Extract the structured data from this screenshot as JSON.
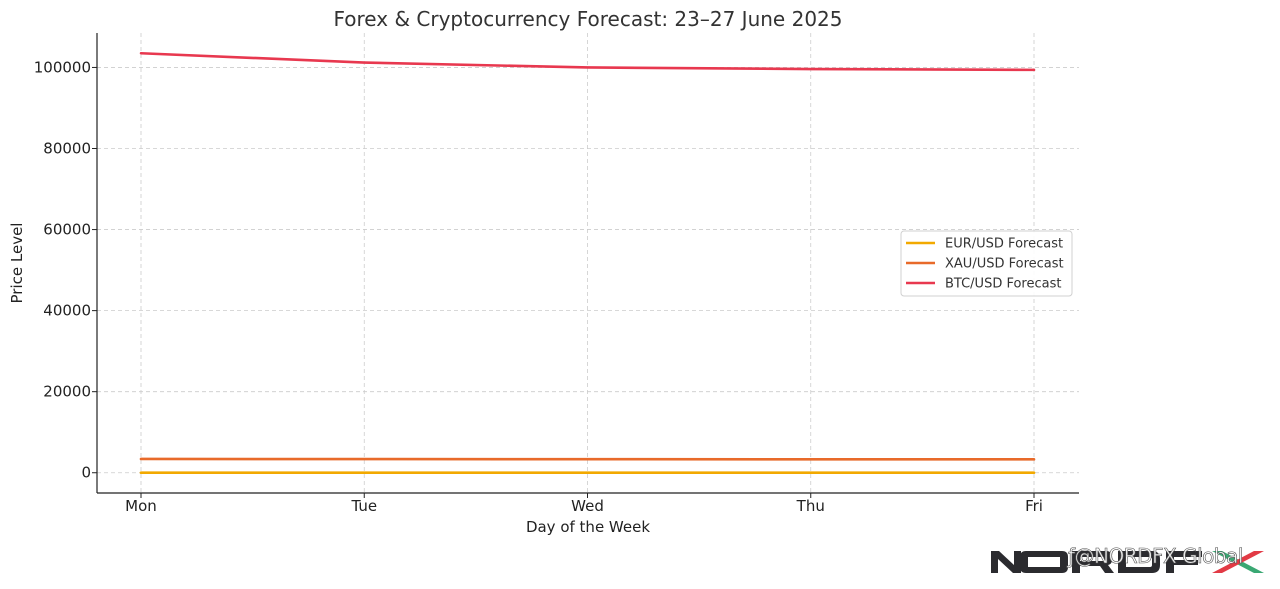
{
  "chart_data": {
    "type": "line",
    "title": "Forex & Cryptocurrency Forecast: 23–27 June 2025",
    "xlabel": "Day of the Week",
    "ylabel": "Price Level",
    "categories": [
      "Mon",
      "Tue",
      "Wed",
      "Thu",
      "Fri"
    ],
    "ylim": [
      -5000,
      108500
    ],
    "yticks": [
      0,
      20000,
      40000,
      60000,
      80000,
      100000
    ],
    "ytick_labels": [
      "0",
      "20000",
      "40000",
      "60000",
      "80000",
      "100000"
    ],
    "grid": true,
    "legend_position": "center-right",
    "series": [
      {
        "name": "EUR/USD Forecast",
        "color": "#f2a900",
        "values": [
          1.145,
          1.15,
          1.155,
          1.16,
          1.158
        ]
      },
      {
        "name": "XAU/USD Forecast",
        "color": "#e86a2a",
        "values": [
          3400,
          3370,
          3340,
          3320,
          3310
        ]
      },
      {
        "name": "BTC/USD Forecast",
        "color": "#e8384f",
        "values": [
          103500,
          101200,
          100000,
          99600,
          99400
        ]
      }
    ]
  },
  "watermark": {
    "brand": "NORDFX",
    "handle": "@NORDFX Global",
    "icon": "facebook-icon"
  }
}
